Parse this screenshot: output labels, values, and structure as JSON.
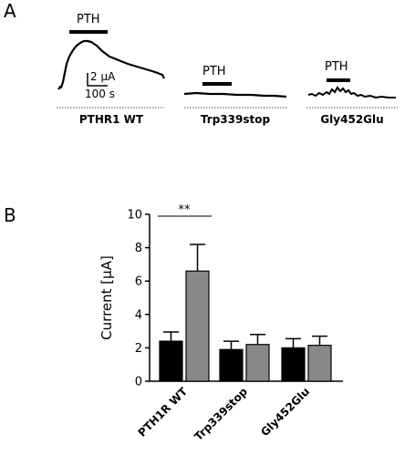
{
  "panel_a": {
    "letter": "A",
    "stimulus_label": "PTH",
    "scale_bar": {
      "current": "2 µA",
      "time": "100 s"
    },
    "traces": [
      {
        "label": "PTHR1 WT"
      },
      {
        "label": "Trp339stop"
      },
      {
        "label": "Gly452Glu"
      }
    ]
  },
  "panel_b": {
    "letter": "B",
    "significance": "**"
  },
  "chart_data": {
    "type": "bar",
    "title": "",
    "xlabel": "",
    "ylabel": "Current [µA]",
    "ylim": [
      0,
      10
    ],
    "yticks": [
      "0",
      "2",
      "4",
      "6",
      "8",
      "10"
    ],
    "categories": [
      "PTH1R WT",
      "Trp339stop",
      "Gly452Glu"
    ],
    "series": [
      {
        "color": "#000000",
        "values": [
          2.4,
          1.9,
          2.0
        ],
        "errors": [
          0.55,
          0.5,
          0.55
        ]
      },
      {
        "color": "#888888",
        "values": [
          6.6,
          2.2,
          2.15
        ],
        "errors": [
          1.6,
          0.6,
          0.55
        ]
      }
    ],
    "annotations": [
      {
        "text": "**",
        "between": [
          "PTH1R WT",
          "PTH1R WT"
        ]
      }
    ]
  }
}
